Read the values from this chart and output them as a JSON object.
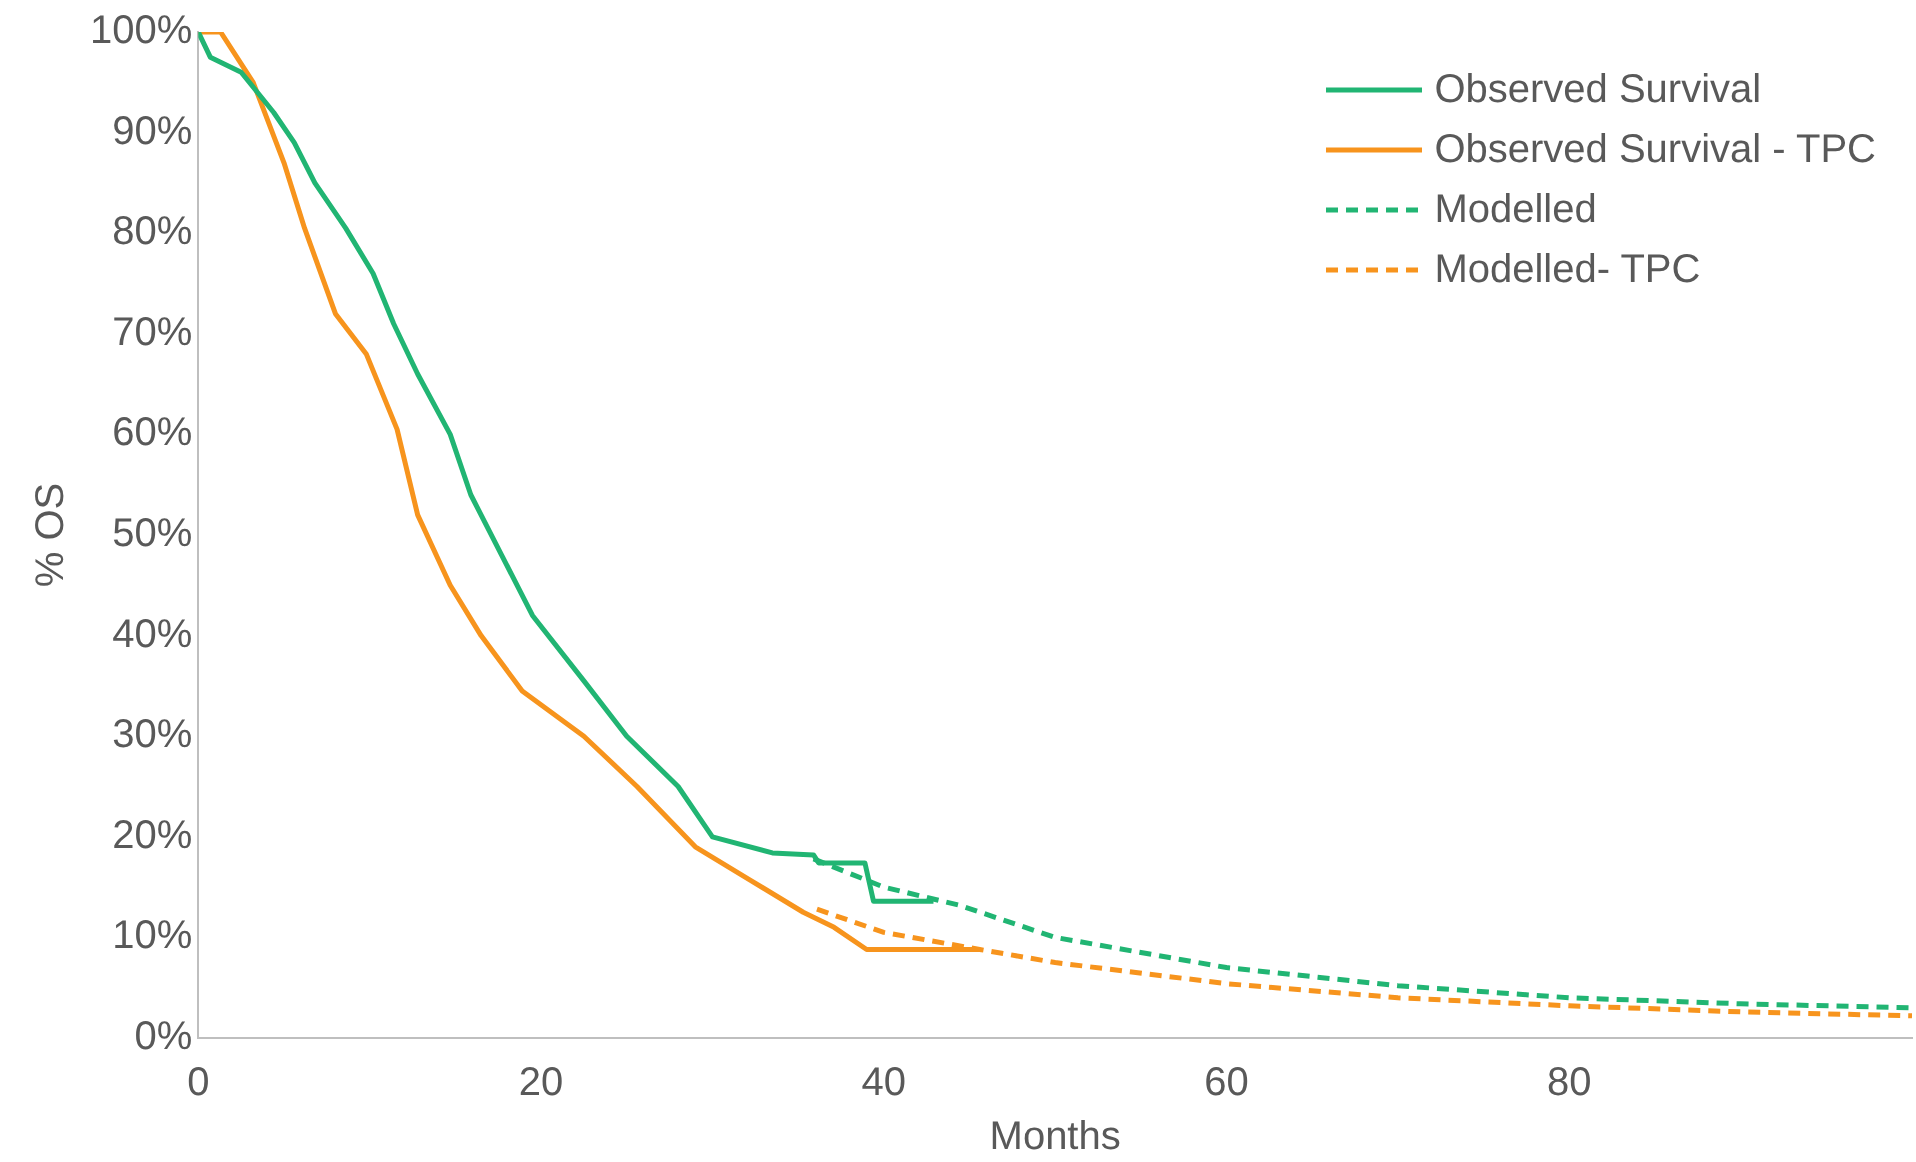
{
  "chart_data": {
    "type": "line",
    "xlabel": "Months",
    "ylabel": "% OS",
    "xlim": [
      0,
      100
    ],
    "xticks": [
      0,
      20,
      40,
      60,
      80
    ],
    "ylim": [
      0,
      100
    ],
    "yticks": [
      {
        "value": 0,
        "label": "0%"
      },
      {
        "value": 10,
        "label": "10%"
      },
      {
        "value": 20,
        "label": "20%"
      },
      {
        "value": 30,
        "label": "30%"
      },
      {
        "value": 40,
        "label": "40%"
      },
      {
        "value": 50,
        "label": "50%"
      },
      {
        "value": 60,
        "label": "60%"
      },
      {
        "value": 70,
        "label": "70%"
      },
      {
        "value": 80,
        "label": "80%"
      },
      {
        "value": 90,
        "label": "90%"
      },
      {
        "value": 100,
        "label": "100%"
      }
    ],
    "grid": false,
    "legend": "top right",
    "marker": "none",
    "series": [
      {
        "name": "Observed Survival",
        "color": "#21b573",
        "line_style": "solid",
        "x": [
          0,
          0.7,
          2.5,
          4.4,
          5.6,
          6.8,
          8.6,
          10.2,
          11.4,
          12.8,
          14.7,
          15.9,
          17.7,
          19.5,
          22.5,
          25,
          28,
          30,
          33.5,
          35.9,
          36.2,
          38.9,
          39.4,
          42.9
        ],
        "values": [
          100,
          97.5,
          96,
          92,
          89,
          85,
          80.5,
          76,
          71,
          66,
          60,
          54,
          48,
          42,
          35.5,
          30,
          25,
          20,
          18.4,
          18.2,
          17.4,
          17.4,
          13.6,
          13.6
        ]
      },
      {
        "name": "Observed Survival - TPC",
        "color": "#f7941d",
        "line_style": "solid",
        "x": [
          0,
          1.3,
          3.2,
          5,
          6.2,
          8,
          9.8,
          11.6,
          12.8,
          14.7,
          16.5,
          18.9,
          22.5,
          25.6,
          29,
          32.2,
          35.3,
          37.1,
          39,
          43,
          45.6
        ],
        "values": [
          100,
          100,
          95,
          87,
          80.5,
          72,
          68,
          60.5,
          52,
          45,
          40,
          34.5,
          30,
          25,
          19,
          15.7,
          12.5,
          11,
          8.8,
          8.8,
          8.8
        ]
      },
      {
        "name": "Modelled",
        "color": "#21b573",
        "line_style": "dashed",
        "x": [
          35.9,
          40,
          44.4,
          50,
          60,
          70,
          80,
          90,
          100
        ],
        "values": [
          17.8,
          15,
          13.2,
          10,
          7,
          5.2,
          4,
          3.4,
          3
        ]
      },
      {
        "name": "Modelled- TPC",
        "color": "#f7941d",
        "line_style": "dashed",
        "x": [
          36.1,
          40,
          45.6,
          50,
          60,
          70,
          80,
          90,
          100
        ],
        "values": [
          12.8,
          10.5,
          8.8,
          7.5,
          5.4,
          4,
          3.2,
          2.6,
          2.2
        ]
      }
    ]
  }
}
